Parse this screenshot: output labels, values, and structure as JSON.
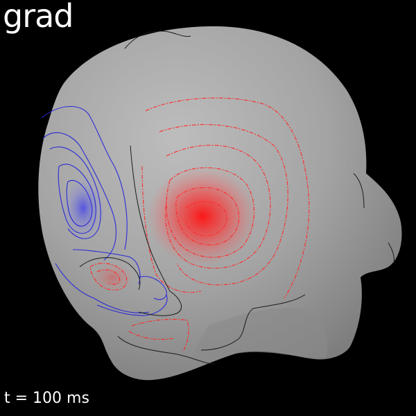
{
  "title": "grad",
  "time_label": "t = 100 ms",
  "colors": {
    "background": "#000000",
    "head": "#9c9c9c",
    "positive": "#ff2020",
    "negative": "#3030d8",
    "zero_contour": "#222222"
  }
}
